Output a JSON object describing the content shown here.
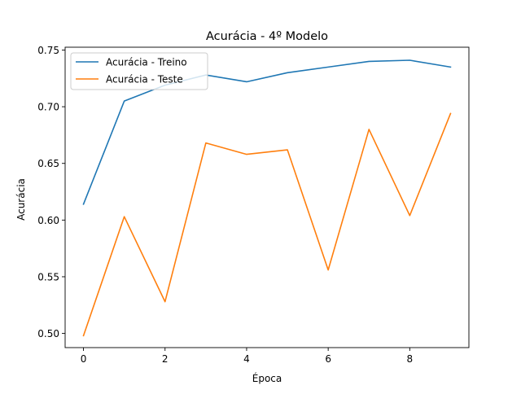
{
  "chart_data": {
    "type": "line",
    "title": "Acurácia - 4º Modelo",
    "xlabel": "Época",
    "ylabel": "Acurácia",
    "xlim": [
      -0.45,
      9.45
    ],
    "ylim": [
      0.4875,
      0.7525
    ],
    "xticks": [
      0,
      2,
      4,
      6,
      8
    ],
    "xtick_labels": [
      "0",
      "2",
      "4",
      "6",
      "8"
    ],
    "yticks": [
      0.5,
      0.55,
      0.6,
      0.65,
      0.7,
      0.75
    ],
    "ytick_labels": [
      "0.50",
      "0.55",
      "0.60",
      "0.65",
      "0.70",
      "0.75"
    ],
    "grid": false,
    "legend_position": "upper-left",
    "x": [
      0,
      1,
      2,
      3,
      4,
      5,
      6,
      7,
      8,
      9
    ],
    "series": [
      {
        "name": "Acurácia - Treino",
        "color": "#1f77b4",
        "values": [
          0.614,
          0.705,
          0.719,
          0.728,
          0.722,
          0.73,
          0.735,
          0.74,
          0.741,
          0.735
        ]
      },
      {
        "name": "Acurácia - Teste",
        "color": "#ff7f0e",
        "values": [
          0.498,
          0.603,
          0.528,
          0.668,
          0.658,
          0.662,
          0.556,
          0.68,
          0.604,
          0.694
        ]
      }
    ]
  }
}
